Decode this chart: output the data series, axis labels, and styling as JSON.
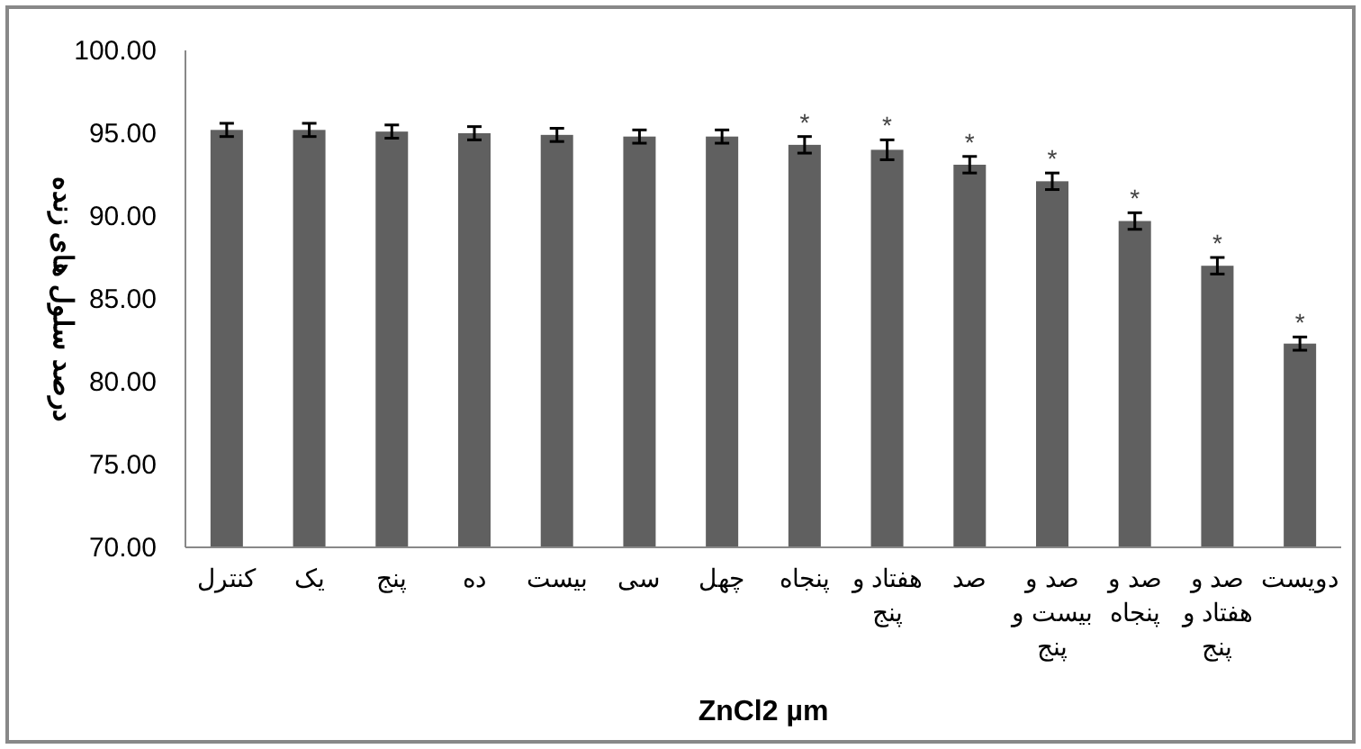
{
  "chart_data": {
    "type": "bar",
    "xlabel": "ZnCl2 µm",
    "ylabel": "درصد سلول های زنده",
    "categories": [
      "کنترل",
      "یک",
      "پنج",
      "ده",
      "بیست",
      "سی",
      "چهل",
      "پنجاه",
      "هفتاد و پنج",
      "صد",
      "صد و بیست و پنج",
      "صد و پنجاه",
      "صد و هفتاد و پنج",
      "دویست"
    ],
    "values": [
      95.2,
      95.2,
      95.1,
      95.0,
      94.9,
      94.8,
      94.8,
      94.3,
      94.0,
      93.1,
      92.1,
      89.7,
      87.0,
      82.3
    ],
    "errors": [
      0.4,
      0.4,
      0.4,
      0.4,
      0.4,
      0.4,
      0.4,
      0.5,
      0.6,
      0.5,
      0.5,
      0.5,
      0.5,
      0.4
    ],
    "color": "#606060",
    "ylim": [
      70,
      100
    ],
    "yticks": [
      {
        "value": 70,
        "label": "70.00"
      },
      {
        "value": 75,
        "label": "75.00"
      },
      {
        "value": 80,
        "label": "80.00"
      },
      {
        "value": 85,
        "label": "85.00"
      },
      {
        "value": 90,
        "label": "90.00"
      },
      {
        "value": 95,
        "label": "95.00"
      },
      {
        "value": 100,
        "label": "100.00"
      }
    ],
    "grid": false,
    "annotations": [
      {
        "text": "*",
        "x": "پنجاه",
        "y": 94.8
      },
      {
        "text": "*",
        "x": "هفتاد و پنج",
        "y": 94.6
      },
      {
        "text": "*",
        "x": "صد",
        "y": 93.6
      },
      {
        "text": "*",
        "x": "صد و بیست و پنج",
        "y": 92.6
      },
      {
        "text": "*",
        "x": "صد و پنجاه",
        "y": 90.2
      },
      {
        "text": "*",
        "x": "صد و هفتاد و پنج",
        "y": 87.5
      },
      {
        "text": "*",
        "x": "دویست",
        "y": 82.7
      }
    ]
  }
}
